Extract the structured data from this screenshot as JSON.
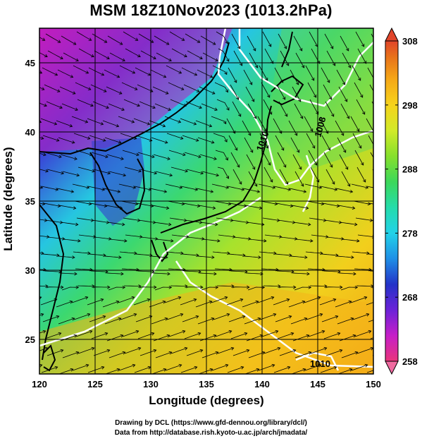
{
  "title": "MSM 18Z10Nov2023 (1013.2hPa)",
  "axes": {
    "xlabel": "Longitude (degrees)",
    "ylabel": "Latitude  (degrees)",
    "xlim": [
      120,
      150
    ],
    "ylim": [
      22.5,
      47.5
    ],
    "xticks": [
      "120",
      "125",
      "130",
      "135",
      "140",
      "145",
      "150"
    ],
    "yticks": [
      "25",
      "30",
      "35",
      "40",
      "45"
    ]
  },
  "colorbar": {
    "min": 258,
    "max": 308,
    "ticks": [
      "308",
      "298",
      "288",
      "278",
      "268",
      "258"
    ],
    "colors": [
      "#e9357a",
      "#c61ec8",
      "#6b22d8",
      "#2333c8",
      "#1f8fe6",
      "#22d2e8",
      "#25dcab",
      "#3cd85a",
      "#86e02c",
      "#d2ea28",
      "#f6d31c",
      "#f5a818",
      "#e8721a",
      "#e0452a"
    ]
  },
  "contour_labels": [
    "1010",
    "1008",
    "1010"
  ],
  "credits": {
    "line1": "Drawing by DCL (https://www.gfd-dennou.org/library/dcl/)",
    "line2": "Data from http://database.rish.kyoto-u.ac.jp/arch/jmadata/"
  }
}
